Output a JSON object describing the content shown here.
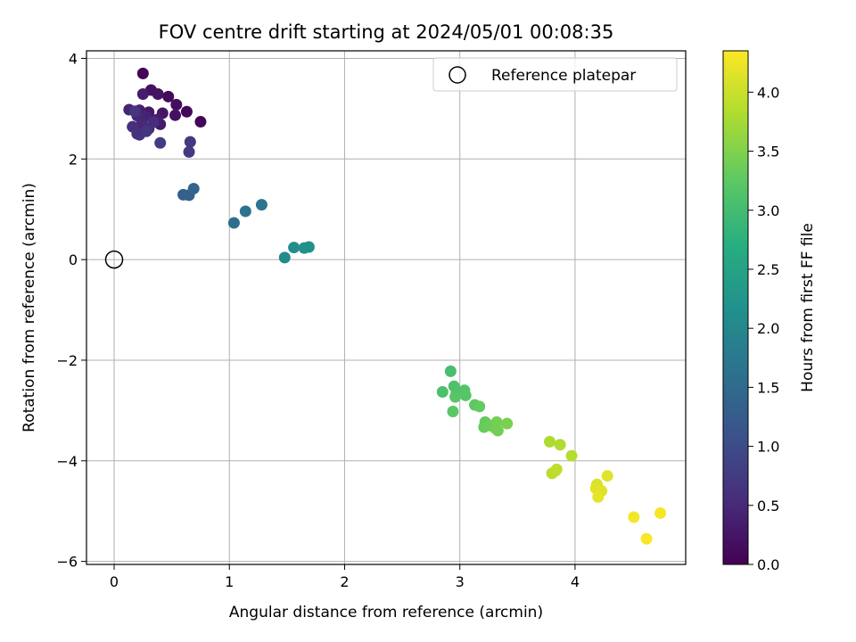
{
  "chart_data": {
    "type": "scatter",
    "title": "FOV centre drift starting at 2024/05/01 00:08:35",
    "xlabel": "Angular distance from reference (arcmin)",
    "ylabel": "Rotation from reference (arcmin)",
    "colorbar_label": "Hours from first FF file",
    "colormap": "viridis",
    "xlim": [
      -0.24,
      4.96
    ],
    "ylim": [
      -6.06,
      4.15
    ],
    "clim": [
      0,
      4.35
    ],
    "x_ticks": [
      0,
      1,
      2,
      3,
      4
    ],
    "x_tick_labels": [
      "0",
      "1",
      "2",
      "3",
      "4"
    ],
    "y_ticks": [
      -6,
      -4,
      -2,
      0,
      2,
      4
    ],
    "y_tick_labels": [
      "−6",
      "−4",
      "−2",
      "0",
      "2",
      "4"
    ],
    "colorbar_ticks": [
      0.0,
      0.5,
      1.0,
      1.5,
      2.0,
      2.5,
      3.0,
      3.5,
      4.0
    ],
    "colorbar_tick_labels": [
      "0.0",
      "0.5",
      "1.0",
      "1.5",
      "2.0",
      "2.5",
      "3.0",
      "3.5",
      "4.0"
    ],
    "grid": true,
    "legend": {
      "position": "top-right",
      "entries": [
        {
          "label": "Reference platepar",
          "marker": "open-circle"
        }
      ]
    },
    "reference_point": {
      "x": 0,
      "y": 0
    },
    "points": [
      {
        "x": 0.25,
        "y": 3.7,
        "t": 0.02
      },
      {
        "x": 0.75,
        "y": 2.74,
        "t": 0.05
      },
      {
        "x": 0.63,
        "y": 2.94,
        "t": 0.08
      },
      {
        "x": 0.47,
        "y": 3.24,
        "t": 0.1
      },
      {
        "x": 0.54,
        "y": 3.08,
        "t": 0.15
      },
      {
        "x": 0.53,
        "y": 2.87,
        "t": 0.18
      },
      {
        "x": 0.32,
        "y": 3.37,
        "t": 0.2
      },
      {
        "x": 0.38,
        "y": 3.29,
        "t": 0.22
      },
      {
        "x": 0.42,
        "y": 2.91,
        "t": 0.25
      },
      {
        "x": 0.3,
        "y": 2.93,
        "t": 0.28
      },
      {
        "x": 0.4,
        "y": 2.69,
        "t": 0.3
      },
      {
        "x": 0.25,
        "y": 3.29,
        "t": 0.33
      },
      {
        "x": 0.37,
        "y": 2.78,
        "t": 0.36
      },
      {
        "x": 0.22,
        "y": 2.97,
        "t": 0.4
      },
      {
        "x": 0.27,
        "y": 2.85,
        "t": 0.42
      },
      {
        "x": 0.13,
        "y": 2.98,
        "t": 0.45
      },
      {
        "x": 0.2,
        "y": 2.86,
        "t": 0.48
      },
      {
        "x": 0.24,
        "y": 2.7,
        "t": 0.5
      },
      {
        "x": 0.3,
        "y": 2.6,
        "t": 0.52
      },
      {
        "x": 0.34,
        "y": 2.73,
        "t": 0.55
      },
      {
        "x": 0.16,
        "y": 2.64,
        "t": 0.58
      },
      {
        "x": 0.2,
        "y": 2.5,
        "t": 0.6
      },
      {
        "x": 0.22,
        "y": 2.48,
        "t": 0.62
      },
      {
        "x": 0.28,
        "y": 2.55,
        "t": 0.65
      },
      {
        "x": 0.18,
        "y": 2.95,
        "t": 0.68
      },
      {
        "x": 0.66,
        "y": 2.34,
        "t": 0.7
      },
      {
        "x": 0.65,
        "y": 2.14,
        "t": 0.73
      },
      {
        "x": 0.4,
        "y": 2.32,
        "t": 0.78
      },
      {
        "x": 0.6,
        "y": 1.29,
        "t": 1.3
      },
      {
        "x": 0.65,
        "y": 1.28,
        "t": 1.35
      },
      {
        "x": 0.69,
        "y": 1.41,
        "t": 1.4
      },
      {
        "x": 1.04,
        "y": 0.73,
        "t": 1.6
      },
      {
        "x": 1.14,
        "y": 0.96,
        "t": 1.65
      },
      {
        "x": 1.28,
        "y": 1.09,
        "t": 1.7
      },
      {
        "x": 1.48,
        "y": 0.04,
        "t": 2.05
      },
      {
        "x": 1.56,
        "y": 0.24,
        "t": 2.1
      },
      {
        "x": 1.65,
        "y": 0.23,
        "t": 2.15
      },
      {
        "x": 1.69,
        "y": 0.25,
        "t": 2.2
      },
      {
        "x": 2.92,
        "y": -2.22,
        "t": 3.05
      },
      {
        "x": 2.85,
        "y": -2.63,
        "t": 3.08
      },
      {
        "x": 2.95,
        "y": -2.52,
        "t": 3.1
      },
      {
        "x": 2.97,
        "y": -2.66,
        "t": 3.12
      },
      {
        "x": 3.04,
        "y": -2.6,
        "t": 3.15
      },
      {
        "x": 3.05,
        "y": -2.7,
        "t": 3.18
      },
      {
        "x": 2.96,
        "y": -2.73,
        "t": 3.2
      },
      {
        "x": 2.94,
        "y": -3.02,
        "t": 3.22
      },
      {
        "x": 3.13,
        "y": -2.89,
        "t": 3.25
      },
      {
        "x": 3.17,
        "y": -2.92,
        "t": 3.28
      },
      {
        "x": 3.22,
        "y": -3.23,
        "t": 3.3
      },
      {
        "x": 3.21,
        "y": -3.33,
        "t": 3.32
      },
      {
        "x": 3.26,
        "y": -3.3,
        "t": 3.35
      },
      {
        "x": 3.31,
        "y": -3.36,
        "t": 3.38
      },
      {
        "x": 3.33,
        "y": -3.4,
        "t": 3.4
      },
      {
        "x": 3.32,
        "y": -3.23,
        "t": 3.42
      },
      {
        "x": 3.41,
        "y": -3.26,
        "t": 3.45
      },
      {
        "x": 3.78,
        "y": -3.62,
        "t": 3.8
      },
      {
        "x": 3.87,
        "y": -3.68,
        "t": 3.82
      },
      {
        "x": 3.97,
        "y": -3.9,
        "t": 3.85
      },
      {
        "x": 3.8,
        "y": -4.25,
        "t": 3.88
      },
      {
        "x": 3.83,
        "y": -4.2,
        "t": 3.9
      },
      {
        "x": 3.84,
        "y": -4.17,
        "t": 3.92
      },
      {
        "x": 4.19,
        "y": -4.47,
        "t": 4.1
      },
      {
        "x": 4.21,
        "y": -4.58,
        "t": 4.12
      },
      {
        "x": 4.23,
        "y": -4.6,
        "t": 4.14
      },
      {
        "x": 4.18,
        "y": -4.55,
        "t": 4.16
      },
      {
        "x": 4.2,
        "y": -4.72,
        "t": 4.18
      },
      {
        "x": 4.28,
        "y": -4.3,
        "t": 4.15
      },
      {
        "x": 4.51,
        "y": -5.12,
        "t": 4.28
      },
      {
        "x": 4.74,
        "y": -5.04,
        "t": 4.3
      },
      {
        "x": 4.62,
        "y": -5.55,
        "t": 4.33
      }
    ]
  }
}
